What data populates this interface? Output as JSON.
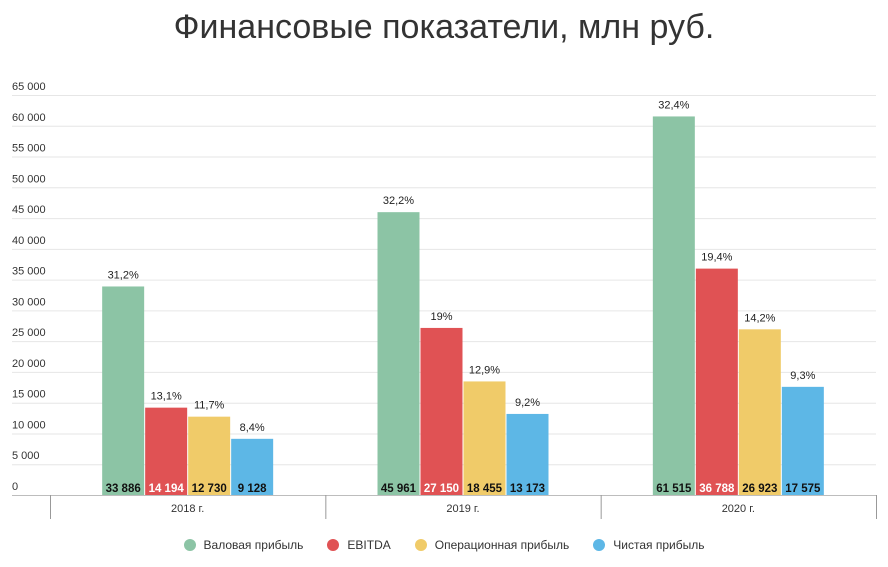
{
  "chart_data": {
    "type": "bar",
    "title": "Финансовые показатели, млн руб.",
    "xlabel": "",
    "ylabel": "",
    "ylim": [
      0,
      65000
    ],
    "yticks": [
      0,
      5000,
      10000,
      15000,
      20000,
      25000,
      30000,
      35000,
      40000,
      45000,
      50000,
      55000,
      60000,
      65000
    ],
    "ytick_labels": [
      "0",
      "5 000",
      "10 000",
      "15 000",
      "20 000",
      "25 000",
      "30 000",
      "35 000",
      "40 000",
      "45 000",
      "50 000",
      "55 000",
      "60 000",
      "65 000"
    ],
    "grid": true,
    "legend_position": "bottom",
    "categories": [
      "2018 г.",
      "2019 г.",
      "2020 г."
    ],
    "series": [
      {
        "name": "Валовая прибыль",
        "color": "#8CC4A5",
        "values": [
          33886,
          45961,
          61515
        ],
        "value_labels": [
          "33 886",
          "45 961",
          "61 515"
        ],
        "pct_labels": [
          "31,2%",
          "32,2%",
          "32,4%"
        ],
        "label_color": "#111111"
      },
      {
        "name": "EBITDA",
        "color": "#E05254",
        "values": [
          14194,
          27150,
          36788
        ],
        "value_labels": [
          "14 194",
          "27 150",
          "36 788"
        ],
        "pct_labels": [
          "13,1%",
          "19%",
          "19,4%"
        ],
        "label_color": "#ffffff"
      },
      {
        "name": "Операционная прибыль",
        "color": "#F0CB69",
        "values": [
          12730,
          18455,
          26923
        ],
        "value_labels": [
          "12 730",
          "18 455",
          "26 923"
        ],
        "pct_labels": [
          "11,7%",
          "12,9%",
          "14,2%"
        ],
        "label_color": "#111111"
      },
      {
        "name": "Чистая прибыль",
        "color": "#5DB7E6",
        "values": [
          9128,
          13173,
          17575
        ],
        "value_labels": [
          "9 128",
          "13 173",
          "17 575"
        ],
        "pct_labels": [
          "8,4%",
          "9,2%",
          "9,3%"
        ],
        "label_color": "#111111"
      }
    ]
  }
}
